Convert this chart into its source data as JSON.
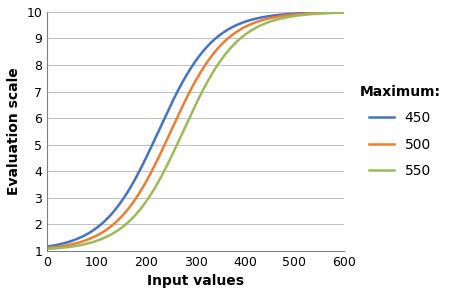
{
  "title": "",
  "xlabel": "Input values",
  "ylabel": "Evaluation scale",
  "legend_title": "Maximum:",
  "xlim": [
    0,
    600
  ],
  "ylim": [
    1,
    10
  ],
  "xticks": [
    0,
    100,
    200,
    300,
    400,
    500,
    600
  ],
  "yticks": [
    1,
    2,
    3,
    4,
    5,
    6,
    7,
    8,
    9,
    10
  ],
  "curves": [
    {
      "max_val": 450,
      "color": "#4472C4",
      "label": "450"
    },
    {
      "max_val": 500,
      "color": "#ED7D31",
      "label": "500"
    },
    {
      "max_val": 550,
      "color": "#9BBB59",
      "label": "550"
    }
  ],
  "y_min": 1,
  "y_max": 10,
  "growth_rate": 0.018,
  "background_color": "#FFFFFF",
  "xlabel_fontsize": 10,
  "ylabel_fontsize": 10,
  "xlabel_bold": true,
  "ylabel_bold": true,
  "tick_fontsize": 9,
  "legend_fontsize": 10,
  "legend_title_fontsize": 10,
  "line_width": 1.8
}
